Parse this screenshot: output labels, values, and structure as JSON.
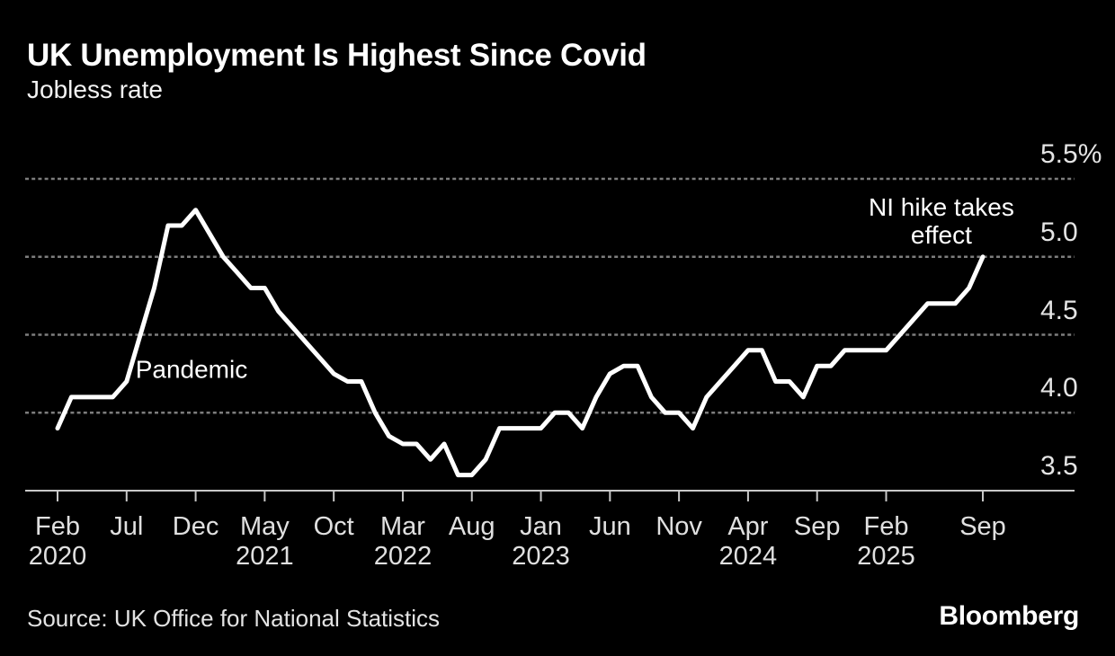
{
  "header": {
    "title": "UK Unemployment Is Highest Since Covid",
    "subtitle": "Jobless rate"
  },
  "chart_data": {
    "type": "line",
    "title": "UK Unemployment Is Highest Since Covid",
    "subtitle": "Jobless rate",
    "unit": "%",
    "frequency": "monthly",
    "x_range": [
      "Feb 2020",
      "Sep 2025"
    ],
    "series": [
      {
        "name": "Jobless rate",
        "start": "Feb 2020",
        "end": "Sep 2025",
        "values": [
          3.9,
          4.1,
          4.1,
          4.1,
          4.1,
          4.2,
          4.5,
          4.8,
          5.2,
          5.2,
          5.3,
          5.15,
          5.0,
          4.9,
          4.8,
          4.8,
          4.65,
          4.55,
          4.45,
          4.35,
          4.25,
          4.2,
          4.2,
          4.0,
          3.85,
          3.8,
          3.8,
          3.7,
          3.8,
          3.6,
          3.6,
          3.7,
          3.9,
          3.9,
          3.9,
          3.9,
          4.0,
          4.0,
          3.9,
          4.1,
          4.25,
          4.3,
          4.3,
          4.1,
          4.0,
          4.0,
          3.9,
          4.1,
          4.2,
          4.3,
          4.4,
          4.4,
          4.2,
          4.2,
          4.1,
          4.3,
          4.3,
          4.4,
          4.4,
          4.4,
          4.4,
          4.5,
          4.6,
          4.7,
          4.7,
          4.7,
          4.8,
          5.0
        ]
      }
    ],
    "y_axis": {
      "range": [
        3.5,
        5.5
      ],
      "side": "right",
      "grid": "dashed",
      "ticks": [
        {
          "label": "5.5%",
          "value": 5.5
        },
        {
          "label": "5.0",
          "value": 5.0
        },
        {
          "label": "4.5",
          "value": 4.5
        },
        {
          "label": "4.0",
          "value": 4.0
        },
        {
          "label": "3.5",
          "value": 3.5
        }
      ]
    },
    "x_axis": {
      "ticks": [
        {
          "month": "Feb",
          "year": "2020",
          "index": 0
        },
        {
          "month": "Jul",
          "year": "",
          "index": 5
        },
        {
          "month": "Dec",
          "year": "",
          "index": 10
        },
        {
          "month": "May",
          "year": "2021",
          "index": 15
        },
        {
          "month": "Oct",
          "year": "",
          "index": 20
        },
        {
          "month": "Mar",
          "year": "2022",
          "index": 25
        },
        {
          "month": "Aug",
          "year": "",
          "index": 30
        },
        {
          "month": "Jan",
          "year": "2023",
          "index": 35
        },
        {
          "month": "Jun",
          "year": "",
          "index": 40
        },
        {
          "month": "Nov",
          "year": "",
          "index": 45
        },
        {
          "month": "Apr",
          "year": "2024",
          "index": 50
        },
        {
          "month": "Sep",
          "year": "",
          "index": 55
        },
        {
          "month": "Feb",
          "year": "2025",
          "index": 60
        },
        {
          "month": "Sep",
          "year": "",
          "index": 67
        }
      ]
    },
    "annotations": [
      {
        "id": "pandemic",
        "lines": [
          "Pandemic"
        ],
        "x_index": 9.7,
        "value": 4.28
      },
      {
        "id": "ni-hike",
        "lines": [
          "NI hike takes",
          "effect"
        ],
        "x_index": 64.0,
        "value": 5.23
      }
    ],
    "colors": {
      "background": "#000000",
      "line": "#ffffff",
      "grid": "#7d7d7d",
      "axis": "#c8c8c8",
      "tick_label": "#e4e4e4",
      "annotation": "#ffffff"
    }
  },
  "source": {
    "label": "Source: UK Office for National Statistics"
  },
  "branding": {
    "logo": "Bloomberg"
  }
}
